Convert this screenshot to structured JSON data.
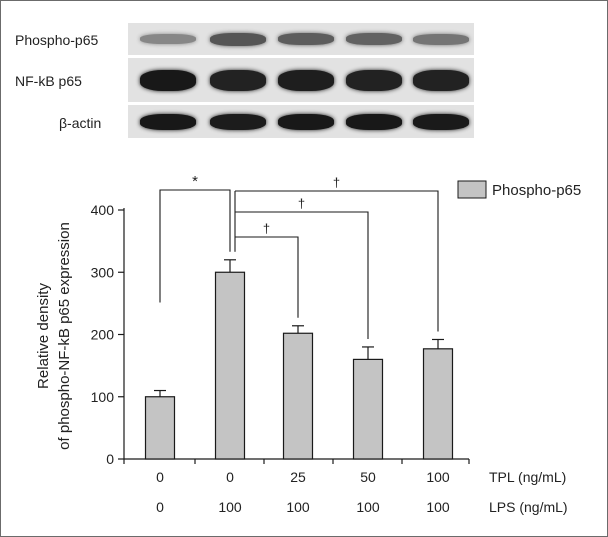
{
  "blot": {
    "rows": [
      {
        "label": "Phospho-p65",
        "intensities": [
          0.35,
          0.62,
          0.58,
          0.55,
          0.45
        ]
      },
      {
        "label": "NF-kB p65",
        "intensities": [
          0.95,
          0.9,
          0.92,
          0.9,
          0.9
        ]
      },
      {
        "label": "β-actin",
        "intensities": [
          0.95,
          0.93,
          0.95,
          0.95,
          0.94
        ]
      }
    ]
  },
  "chart_data": {
    "type": "bar",
    "categories": [
      "0/0",
      "0/100",
      "25/100",
      "50/100",
      "100/100"
    ],
    "values": [
      100,
      300,
      202,
      160,
      177
    ],
    "errors": [
      10,
      20,
      12,
      20,
      15
    ],
    "ylabel": "Relative density\nof phospho-NF-kB p65 expression",
    "ylim": [
      0,
      400
    ],
    "yticks": [
      0,
      100,
      200,
      300,
      400
    ],
    "legend": {
      "label": "Phospho-p65",
      "position": "top-right"
    },
    "row_labels": [
      {
        "name": "TPL (ng/mL)",
        "values": [
          "0",
          "0",
          "25",
          "50",
          "100"
        ]
      },
      {
        "name": "LPS (ng/mL)",
        "values": [
          "0",
          "100",
          "100",
          "100",
          "100"
        ]
      }
    ],
    "significance": [
      {
        "from": 0,
        "to": 1,
        "symbol": "*"
      },
      {
        "from": 1,
        "to": 2,
        "symbol": "†"
      },
      {
        "from": 1,
        "to": 3,
        "symbol": "†"
      },
      {
        "from": 1,
        "to": 4,
        "symbol": "†"
      }
    ],
    "colors": {
      "bar": "#c4c4c4",
      "stroke": "#1a1a1a"
    }
  }
}
